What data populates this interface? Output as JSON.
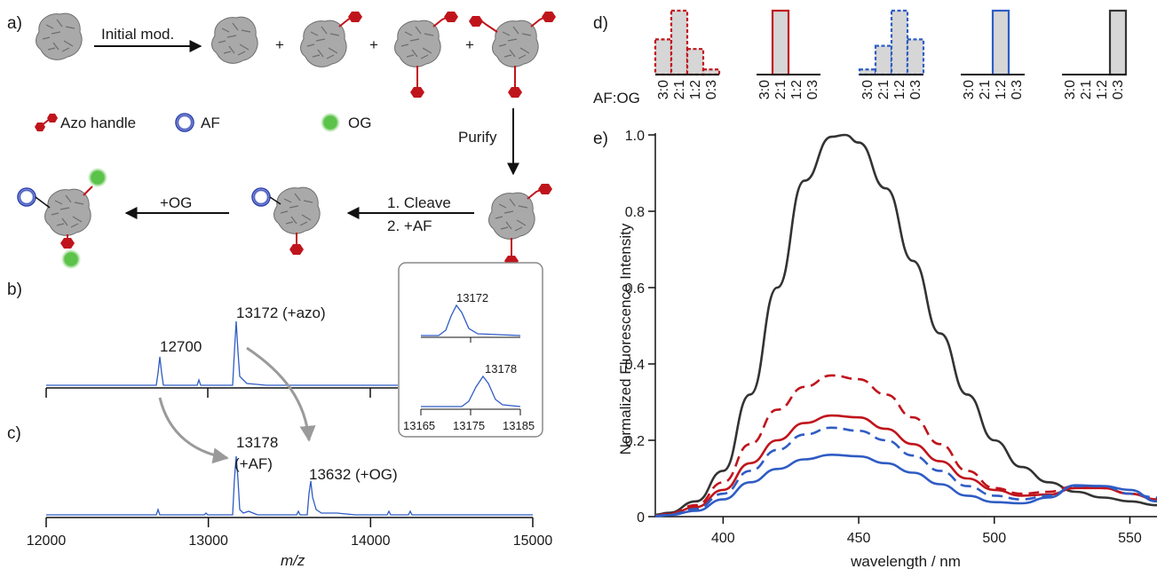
{
  "panel_labels": {
    "a": "a)",
    "b": "b)",
    "c": "c)",
    "d": "d)",
    "e": "e)"
  },
  "scheme": {
    "arrow_initial_mod": "Initial mod.",
    "plus": "+",
    "legend_azo": "Azo handle",
    "legend_af": "AF",
    "legend_og": "OG",
    "arrow_purify": "Purify",
    "arrow_cleave_1": "1. Cleave",
    "arrow_cleave_2": "2. +AF",
    "arrow_og": "+OG",
    "colors": {
      "handle": "#c0141c",
      "af_ring": "#2a3fae",
      "og": "#5bc24a",
      "protein": "#a9a9a9"
    }
  },
  "mass_spec": {
    "xlabel": "m/z",
    "x_ticks": [
      "12000",
      "13000",
      "14000",
      "15000"
    ],
    "xlim": [
      12000,
      15000
    ],
    "labels": {
      "p12700": "12700",
      "p13172": "13172 (+azo)",
      "p13178_1": "13178",
      "p13178_2": "(+AF)",
      "p13632": "13632 (+OG)"
    },
    "inset": {
      "top_label": "13172",
      "bottom_label": "13178",
      "x_ticks": [
        "13165",
        "13175",
        "13185"
      ],
      "xlim": [
        13165,
        13185
      ]
    },
    "line_color": "#2f5cc4"
  },
  "chart_data": [
    {
      "type": "bar",
      "xlabel": "AF:OG",
      "categories": [
        "3:0",
        "2:1",
        "1:2",
        "0:3"
      ],
      "series": [
        {
          "values": [
            0.55,
            1.0,
            0.4,
            0.08
          ],
          "color": "#c0141c",
          "style": "dashed"
        },
        {
          "values": [
            0,
            1.0,
            0,
            0
          ],
          "color": "#c0141c",
          "style": "solid"
        },
        {
          "values": [
            0.08,
            0.45,
            1.0,
            0.55
          ],
          "color": "#2f5cc4",
          "style": "dashed"
        },
        {
          "values": [
            0,
            0,
            1.0,
            0
          ],
          "color": "#2f5cc4",
          "style": "solid"
        },
        {
          "values": [
            0,
            0,
            0,
            1.0
          ],
          "color": "#333333",
          "style": "solid"
        }
      ]
    },
    {
      "type": "line",
      "xlabel": "wavelength / nm",
      "ylabel": "Normalized Fluorescence Intensity",
      "xlim": [
        375,
        560
      ],
      "ylim": [
        0,
        1.0
      ],
      "x_ticks": [
        "400",
        "450",
        "500",
        "550"
      ],
      "y_ticks": [
        "0",
        "0.2",
        "0.4",
        "0.6",
        "0.8",
        "1.0"
      ],
      "grid": false,
      "series": [
        {
          "color": "#333333",
          "style": "solid",
          "x": [
            375,
            380,
            390,
            400,
            410,
            420,
            430,
            440,
            445,
            450,
            460,
            470,
            480,
            490,
            500,
            510,
            520,
            530,
            540,
            550,
            560
          ],
          "y": [
            0.005,
            0.01,
            0.04,
            0.12,
            0.32,
            0.6,
            0.88,
            0.995,
            1.0,
            0.98,
            0.86,
            0.67,
            0.48,
            0.32,
            0.2,
            0.13,
            0.09,
            0.065,
            0.05,
            0.04,
            0.03
          ]
        },
        {
          "color": "#c0141c",
          "style": "dashed",
          "x": [
            375,
            380,
            390,
            400,
            410,
            420,
            430,
            440,
            450,
            460,
            470,
            480,
            490,
            500,
            510,
            520,
            530,
            540,
            550,
            560
          ],
          "y": [
            0.003,
            0.008,
            0.03,
            0.09,
            0.19,
            0.28,
            0.34,
            0.37,
            0.36,
            0.32,
            0.26,
            0.19,
            0.12,
            0.075,
            0.06,
            0.065,
            0.08,
            0.075,
            0.06,
            0.045
          ]
        },
        {
          "color": "#c0141c",
          "style": "solid",
          "x": [
            375,
            380,
            390,
            400,
            410,
            420,
            430,
            440,
            450,
            460,
            470,
            480,
            490,
            500,
            510,
            520,
            530,
            540,
            550,
            560
          ],
          "y": [
            0.002,
            0.006,
            0.025,
            0.07,
            0.14,
            0.2,
            0.245,
            0.265,
            0.26,
            0.23,
            0.19,
            0.145,
            0.1,
            0.07,
            0.055,
            0.058,
            0.075,
            0.075,
            0.06,
            0.045
          ]
        },
        {
          "color": "#2f5cc4",
          "style": "dashed",
          "x": [
            375,
            380,
            390,
            400,
            410,
            420,
            430,
            440,
            450,
            460,
            470,
            480,
            490,
            500,
            510,
            520,
            530,
            540,
            550,
            560
          ],
          "y": [
            0.002,
            0.005,
            0.02,
            0.06,
            0.12,
            0.175,
            0.215,
            0.233,
            0.225,
            0.2,
            0.16,
            0.12,
            0.08,
            0.055,
            0.045,
            0.055,
            0.08,
            0.08,
            0.06,
            0.05
          ]
        },
        {
          "color": "#2f5cc4",
          "style": "solid",
          "x": [
            375,
            380,
            390,
            400,
            410,
            420,
            430,
            440,
            450,
            460,
            470,
            480,
            490,
            500,
            510,
            520,
            530,
            540,
            550,
            560
          ],
          "y": [
            0.001,
            0.004,
            0.015,
            0.045,
            0.09,
            0.125,
            0.15,
            0.162,
            0.158,
            0.14,
            0.115,
            0.085,
            0.055,
            0.038,
            0.035,
            0.05,
            0.082,
            0.08,
            0.07,
            0.04
          ]
        }
      ]
    }
  ]
}
